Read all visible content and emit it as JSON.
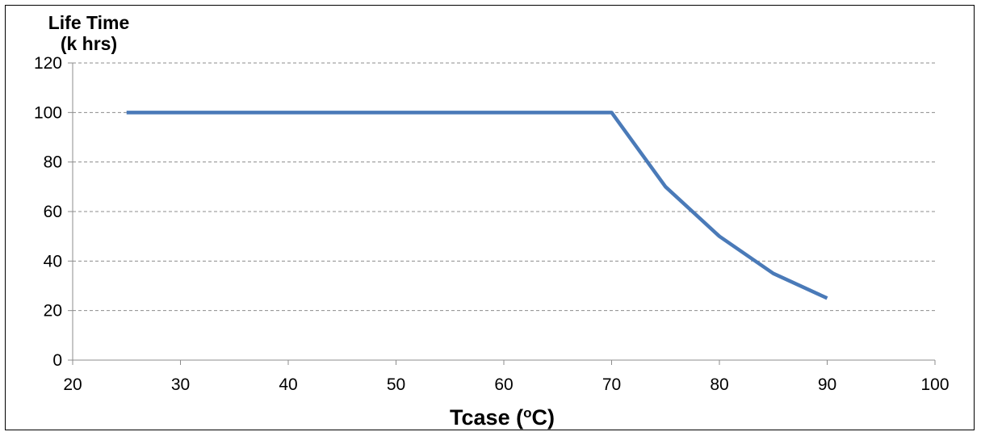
{
  "chart_data": {
    "type": "line",
    "title": "",
    "ylabel_line1": "Life Time",
    "ylabel_line2": "(k hrs)",
    "xlabel_main": "Tcase (",
    "xlabel_sup": "o",
    "xlabel_end": "C)",
    "xlim": [
      20,
      100
    ],
    "ylim": [
      0,
      120
    ],
    "x_ticks": [
      20,
      30,
      40,
      50,
      60,
      70,
      80,
      90,
      100
    ],
    "y_ticks": [
      0,
      20,
      40,
      60,
      80,
      100,
      120
    ],
    "grid": "horizontal dashed",
    "legend": "none",
    "series": [
      {
        "color": "#4a7ab8",
        "x": [
          25,
          70,
          75,
          80,
          85,
          90
        ],
        "y": [
          100,
          100,
          70,
          50,
          35,
          25
        ]
      }
    ]
  }
}
